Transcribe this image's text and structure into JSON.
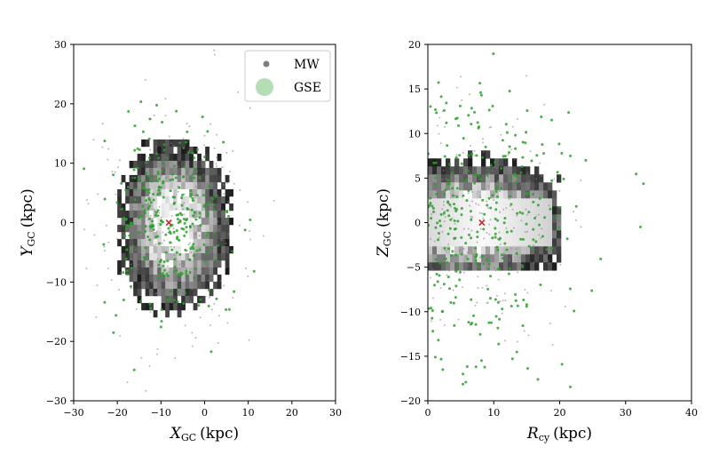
{
  "chart_data": [
    {
      "type": "scatter",
      "panel": "left",
      "xlabel": {
        "main": "X",
        "sub": "GC",
        "unit": "(kpc)"
      },
      "ylabel": {
        "main": "Y",
        "sub": "GC",
        "unit": "(kpc)"
      },
      "xlim": [
        -30,
        30
      ],
      "ylim": [
        -30,
        30
      ],
      "xticks": [
        -30,
        -20,
        -10,
        0,
        10,
        20,
        30
      ],
      "yticks": [
        -30,
        -20,
        -10,
        0,
        10,
        20,
        30
      ],
      "xtick_labels": [
        "−30",
        "−20",
        "−10",
        "0",
        "10",
        "20",
        "30"
      ],
      "ytick_labels": [
        "−30",
        "−20",
        "−10",
        "0",
        "10",
        "20",
        "30"
      ],
      "density_region": {
        "x": [
          -20,
          6
        ],
        "y": [
          -15,
          14
        ]
      },
      "sun_marker": {
        "x": -8.2,
        "y": 0,
        "color": "#d62728"
      },
      "series": [
        {
          "name": "MW",
          "color": "#7f7f7f",
          "spread": 9,
          "n": 240
        },
        {
          "name": "GSE",
          "color": "#2ca02c",
          "spread": 7,
          "n": 300
        }
      ],
      "legend": {
        "position": "top-right",
        "entries": [
          "MW",
          "GSE"
        ]
      }
    },
    {
      "type": "scatter",
      "panel": "right",
      "xlabel": {
        "main": "R",
        "sub": "cy",
        "unit": "(kpc)"
      },
      "ylabel": {
        "main": "Z",
        "sub": "GC",
        "unit": "(kpc)"
      },
      "xlim": [
        0,
        40
      ],
      "ylim": [
        -20,
        20
      ],
      "xticks": [
        0,
        10,
        20,
        30,
        40
      ],
      "yticks": [
        -20,
        -15,
        -10,
        -5,
        0,
        5,
        10,
        15,
        20
      ],
      "xtick_labels": [
        "0",
        "10",
        "20",
        "30",
        "40"
      ],
      "ytick_labels": [
        "−20",
        "−15",
        "−10",
        "−5",
        "0",
        "5",
        "10",
        "15",
        "20"
      ],
      "density_region": {
        "x": [
          0,
          20
        ],
        "y": [
          -4.5,
          9
        ]
      },
      "sun_marker": {
        "x": 8.2,
        "y": 0,
        "color": "#d62728"
      },
      "series": [
        {
          "name": "MW",
          "color": "#7f7f7f",
          "spread": 7,
          "n": 220
        },
        {
          "name": "GSE",
          "color": "#2ca02c",
          "spread": 8,
          "n": 320
        }
      ]
    }
  ]
}
